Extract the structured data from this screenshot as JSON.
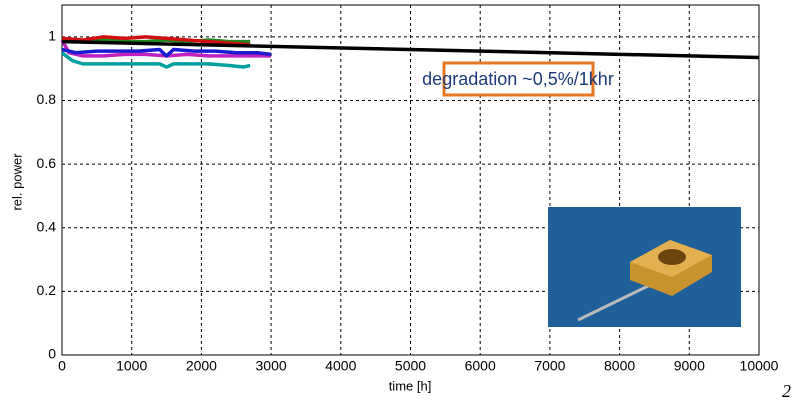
{
  "chart_data": {
    "type": "line",
    "x_label": "time [h]",
    "y_label": "rel. power",
    "annotation": "degradation ~0,5%/1khr",
    "page_number": "2",
    "xlim": [
      0,
      10000
    ],
    "xticks": [
      0,
      1000,
      2000,
      3000,
      4000,
      5000,
      6000,
      7000,
      8000,
      9000,
      10000
    ],
    "ylim": [
      0,
      1.1
    ],
    "yticks": [
      0,
      0.2,
      0.4,
      0.6,
      0.8,
      1
    ],
    "grid": true,
    "series": [
      {
        "color": "#00a0a0",
        "x": [
          0,
          150,
          300,
          600,
          900,
          1200,
          1400,
          1500,
          1600,
          1800,
          2100,
          2400,
          2600,
          2700
        ],
        "values": [
          0.95,
          0.925,
          0.915,
          0.915,
          0.915,
          0.915,
          0.915,
          0.905,
          0.915,
          0.915,
          0.915,
          0.91,
          0.905,
          0.91
        ]
      },
      {
        "color": "#c020c0",
        "x": [
          0,
          100,
          300,
          600,
          900,
          1200,
          1500,
          1800,
          2100,
          2400,
          2700,
          3000
        ],
        "values": [
          0.99,
          0.95,
          0.94,
          0.94,
          0.945,
          0.945,
          0.94,
          0.945,
          0.94,
          0.94,
          0.94,
          0.94
        ]
      },
      {
        "color": "#1a1ad0",
        "x": [
          0,
          200,
          500,
          800,
          1100,
          1400,
          1500,
          1600,
          1900,
          2200,
          2500,
          2800,
          3000
        ],
        "values": [
          0.96,
          0.95,
          0.955,
          0.955,
          0.955,
          0.96,
          0.94,
          0.96,
          0.955,
          0.955,
          0.95,
          0.95,
          0.945
        ]
      },
      {
        "color": "#1a8a1a",
        "x": [
          0,
          300,
          600,
          900,
          1200,
          1500,
          1800,
          2100,
          2400,
          2700
        ],
        "values": [
          0.985,
          0.985,
          0.99,
          0.985,
          0.985,
          0.99,
          0.985,
          0.99,
          0.985,
          0.985
        ]
      },
      {
        "color": "#d01010",
        "x": [
          0,
          300,
          600,
          900,
          1200,
          1500,
          1800,
          2100,
          2400,
          2700
        ],
        "values": [
          0.995,
          0.99,
          1.0,
          0.995,
          1.0,
          0.995,
          0.99,
          0.985,
          0.98,
          0.975
        ]
      },
      {
        "color": "#000000",
        "x": [
          0,
          10000
        ],
        "values": [
          0.985,
          0.935
        ]
      }
    ]
  }
}
